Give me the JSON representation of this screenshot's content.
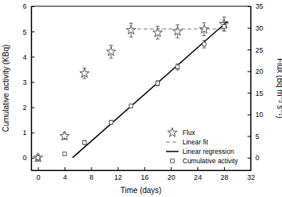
{
  "chart_data": {
    "type": "scatter",
    "x_label": "Time (days)",
    "y_label": "Cumulative activity (KBq)",
    "y2_label": "Flux (Bq m⁻² s⁻¹)",
    "xlim": [
      -1,
      32
    ],
    "xticks": [
      0,
      4,
      8,
      12,
      16,
      20,
      24,
      28,
      32
    ],
    "ylim": [
      -0.5,
      6
    ],
    "yticks": [
      0,
      1,
      2,
      3,
      4,
      5,
      6
    ],
    "y2lim": [
      -2.92,
      35
    ],
    "y2ticks": [
      0,
      5,
      10,
      15,
      20,
      25,
      30,
      35
    ],
    "legend": "lower-right",
    "series": [
      {
        "name": "Flux",
        "type": "scatter",
        "marker": "star",
        "color": "#555555",
        "axis": "y2",
        "x": [
          0,
          4,
          7,
          11,
          14,
          18,
          21,
          25,
          28
        ],
        "values": [
          0,
          5,
          19.5,
          24.5,
          29.5,
          28.9,
          29.2,
          29.7,
          30.9
        ],
        "errors": [
          0.8,
          0.8,
          1.2,
          1.5,
          1.6,
          1.5,
          1.5,
          1.5,
          1.6
        ]
      },
      {
        "name": "Linear fit",
        "type": "line",
        "line_style": "dashed",
        "color": "#777777",
        "axis": "y2",
        "x": [
          14,
          28
        ],
        "values": [
          29.75,
          29.75
        ]
      },
      {
        "name": "Linear regression",
        "type": "line",
        "line_style": "solid",
        "color": "#000000",
        "x": [
          5.2,
          28.5
        ],
        "values": [
          0,
          5.4
        ]
      },
      {
        "name": "Cumulative activity",
        "type": "scatter",
        "marker": "square",
        "color": "#555555",
        "x": [
          0,
          4,
          7,
          11,
          14,
          18,
          21,
          25,
          28
        ],
        "values": [
          0,
          0.15,
          0.6,
          1.4,
          2.05,
          2.95,
          3.6,
          4.5,
          5.2
        ],
        "errors": [
          0.05,
          0.05,
          0.08,
          0.08,
          0.08,
          0.1,
          0.12,
          0.15,
          0.18
        ]
      }
    ]
  }
}
